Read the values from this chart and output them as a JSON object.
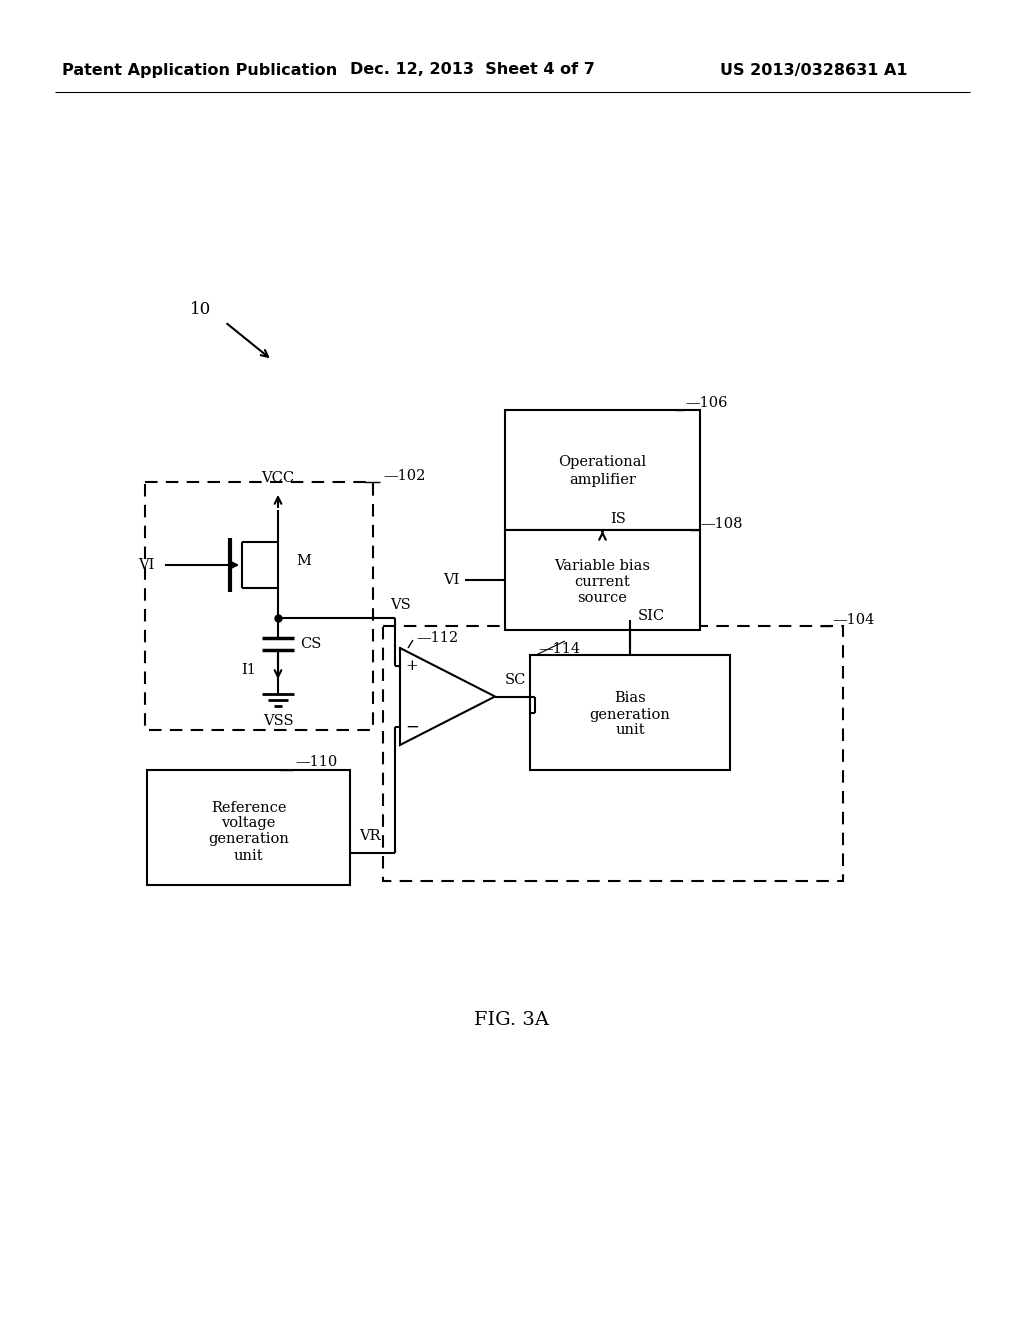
{
  "bg_color": "#ffffff",
  "header_text": "Patent Application Publication",
  "header_date": "Dec. 12, 2013  Sheet 4 of 7",
  "header_patent": "US 2013/0328631 A1",
  "figure_label": "FIG. 3A",
  "font_size_header": 11.5,
  "font_size_body": 10.5,
  "font_size_fig": 14
}
